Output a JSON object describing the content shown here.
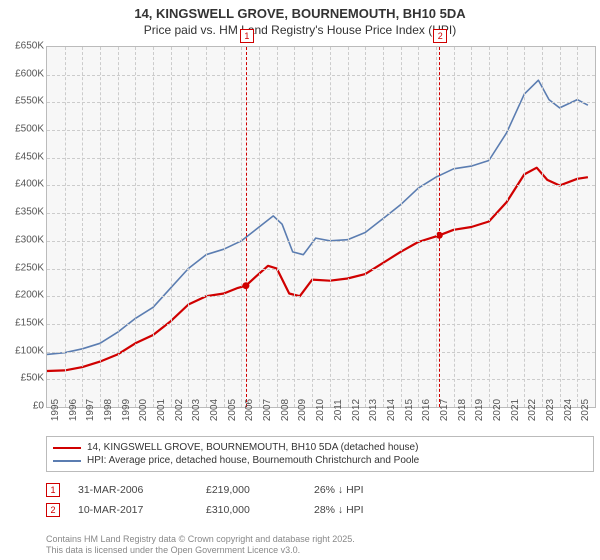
{
  "title_line1": "14, KINGSWELL GROVE, BOURNEMOUTH, BH10 5DA",
  "title_line2": "Price paid vs. HM Land Registry's House Price Index (HPI)",
  "chart": {
    "type": "line",
    "background_color": "#f7f7f7",
    "border_color": "#bbbbbb",
    "grid_color": "#cccccc",
    "x_start_year": 1995,
    "x_end_year": 2026,
    "xtick_step": 1,
    "ylim": [
      0,
      650000
    ],
    "ytick_step": 50000,
    "ytick_prefix": "£",
    "ytick_suffix": "K",
    "series": [
      {
        "id": "paid",
        "label": "14, KINGSWELL GROVE, BOURNEMOUTH, BH10 5DA (detached house)",
        "color": "#d00000",
        "width": 2.2,
        "values": [
          [
            1995.0,
            65000
          ],
          [
            1996.0,
            66000
          ],
          [
            1997.0,
            72000
          ],
          [
            1998.0,
            82000
          ],
          [
            1999.0,
            95000
          ],
          [
            2000.0,
            115000
          ],
          [
            2001.0,
            130000
          ],
          [
            2002.0,
            155000
          ],
          [
            2003.0,
            185000
          ],
          [
            2004.0,
            200000
          ],
          [
            2005.0,
            205000
          ],
          [
            2005.8,
            215000
          ],
          [
            2006.25,
            219000
          ],
          [
            2006.8,
            235000
          ],
          [
            2007.5,
            255000
          ],
          [
            2008.0,
            250000
          ],
          [
            2008.7,
            205000
          ],
          [
            2009.3,
            200000
          ],
          [
            2010.0,
            230000
          ],
          [
            2011.0,
            228000
          ],
          [
            2012.0,
            232000
          ],
          [
            2013.0,
            240000
          ],
          [
            2014.0,
            260000
          ],
          [
            2015.0,
            280000
          ],
          [
            2016.0,
            298000
          ],
          [
            2017.0,
            308000
          ],
          [
            2017.19,
            310000
          ],
          [
            2018.0,
            320000
          ],
          [
            2019.0,
            325000
          ],
          [
            2020.0,
            335000
          ],
          [
            2021.0,
            370000
          ],
          [
            2022.0,
            420000
          ],
          [
            2022.7,
            432000
          ],
          [
            2023.3,
            410000
          ],
          [
            2024.0,
            400000
          ],
          [
            2025.0,
            412000
          ],
          [
            2025.6,
            415000
          ]
        ]
      },
      {
        "id": "hpi",
        "label": "HPI: Average price, detached house, Bournemouth Christchurch and Poole",
        "color": "#5b7db1",
        "width": 1.6,
        "values": [
          [
            1995.0,
            95000
          ],
          [
            1996.0,
            98000
          ],
          [
            1997.0,
            105000
          ],
          [
            1998.0,
            115000
          ],
          [
            1999.0,
            135000
          ],
          [
            2000.0,
            160000
          ],
          [
            2001.0,
            180000
          ],
          [
            2002.0,
            215000
          ],
          [
            2003.0,
            250000
          ],
          [
            2004.0,
            275000
          ],
          [
            2005.0,
            285000
          ],
          [
            2006.0,
            300000
          ],
          [
            2007.0,
            325000
          ],
          [
            2007.8,
            345000
          ],
          [
            2008.3,
            330000
          ],
          [
            2008.9,
            280000
          ],
          [
            2009.5,
            275000
          ],
          [
            2010.2,
            305000
          ],
          [
            2011.0,
            300000
          ],
          [
            2012.0,
            302000
          ],
          [
            2013.0,
            315000
          ],
          [
            2014.0,
            340000
          ],
          [
            2015.0,
            365000
          ],
          [
            2016.0,
            395000
          ],
          [
            2017.0,
            415000
          ],
          [
            2018.0,
            430000
          ],
          [
            2019.0,
            435000
          ],
          [
            2020.0,
            445000
          ],
          [
            2021.0,
            495000
          ],
          [
            2022.0,
            565000
          ],
          [
            2022.8,
            590000
          ],
          [
            2023.4,
            555000
          ],
          [
            2024.0,
            540000
          ],
          [
            2025.0,
            555000
          ],
          [
            2025.6,
            545000
          ]
        ]
      }
    ],
    "markers": [
      {
        "n": "1",
        "x_year": 2006.25,
        "y_value": 219000
      },
      {
        "n": "2",
        "x_year": 2017.19,
        "y_value": 310000
      }
    ]
  },
  "legend": {
    "border_color": "#bbbbbb"
  },
  "transactions": [
    {
      "n": "1",
      "date": "31-MAR-2006",
      "price": "£219,000",
      "delta": "26% ↓ HPI"
    },
    {
      "n": "2",
      "date": "10-MAR-2017",
      "price": "£310,000",
      "delta": "28% ↓ HPI"
    }
  ],
  "footer_line1": "Contains HM Land Registry data © Crown copyright and database right 2025.",
  "footer_line2": "This data is licensed under the Open Government Licence v3.0."
}
